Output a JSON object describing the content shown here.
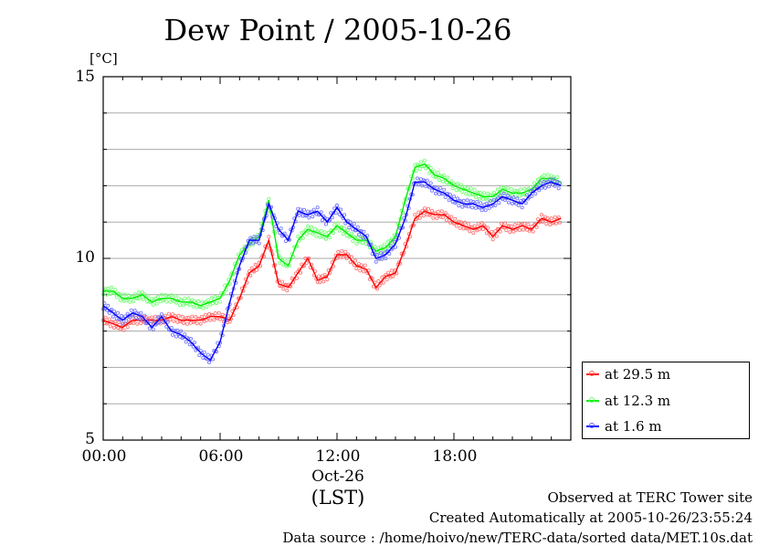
{
  "title": "Dew Point / 2005-10-26",
  "unit": "[°C]",
  "x_date_label": "Oct-26",
  "x_timezone_label": "(LST)",
  "footer": {
    "line1": "Observed at TERC Tower site",
    "line2": "Created Automatically at 2005-10-26/23:55:24",
    "line3": "Data source : /home/hoivo/new/TERC-data/sorted  data/MET.10s.dat"
  },
  "colors": {
    "red": "#ff0000",
    "green": "#00ee00",
    "blue": "#0000ff",
    "grid": "#aaaaaa"
  },
  "chart_data": {
    "type": "line",
    "title": "Dew Point / 2005-10-26",
    "ylabel": "[°C]",
    "xlabel": "(LST)",
    "xlim": [
      0,
      24
    ],
    "ylim": [
      5,
      15
    ],
    "yticks": [
      5,
      10,
      15
    ],
    "xticks": [
      0,
      6,
      12,
      18
    ],
    "xtick_labels": [
      "00:00",
      "06:00",
      "12:00",
      "18:00"
    ],
    "ygrid": [
      6,
      7,
      8,
      9,
      10,
      11,
      12,
      13,
      14
    ],
    "legend_position": "bottom-right, outside plot",
    "series": [
      {
        "name": "at 29.5 m",
        "color": "#ff0000",
        "x": [
          0,
          0.5,
          1,
          1.5,
          2,
          2.5,
          3,
          3.5,
          4,
          4.5,
          5,
          5.5,
          6,
          6.5,
          7,
          7.5,
          8,
          8.5,
          9,
          9.5,
          10,
          10.5,
          11,
          11.5,
          12,
          12.5,
          13,
          13.5,
          14,
          14.5,
          15,
          15.5,
          16,
          16.5,
          17,
          17.5,
          18,
          18.5,
          19,
          19.5,
          20,
          20.5,
          21,
          21.5,
          22,
          22.5,
          23,
          23.5
        ],
        "y": [
          8.3,
          8.2,
          8.1,
          8.3,
          8.3,
          8.3,
          8.3,
          8.4,
          8.3,
          8.3,
          8.3,
          8.4,
          8.4,
          8.3,
          8.9,
          9.6,
          9.8,
          10.5,
          9.3,
          9.2,
          9.6,
          10.0,
          9.4,
          9.5,
          10.1,
          10.1,
          9.8,
          9.7,
          9.2,
          9.5,
          9.6,
          10.3,
          11.1,
          11.3,
          11.2,
          11.2,
          11.0,
          10.9,
          10.8,
          10.9,
          10.6,
          10.9,
          10.8,
          10.9,
          10.8,
          11.1,
          11.0,
          11.1
        ]
      },
      {
        "name": "at 12.3 m",
        "color": "#00ee00",
        "x": [
          0,
          0.5,
          1,
          1.5,
          2,
          2.5,
          3,
          3.5,
          4,
          4.5,
          5,
          5.5,
          6,
          6.5,
          7,
          7.5,
          8,
          8.5,
          9,
          9.5,
          10,
          10.5,
          11,
          11.5,
          12,
          12.5,
          13,
          13.5,
          14,
          14.5,
          15,
          15.5,
          16,
          16.5,
          17,
          17.5,
          18,
          18.5,
          19,
          19.5,
          20,
          20.5,
          21,
          21.5,
          22,
          22.5,
          23,
          23.5
        ],
        "y": [
          9.1,
          9.1,
          8.9,
          8.9,
          9.0,
          8.8,
          8.9,
          8.9,
          8.8,
          8.8,
          8.7,
          8.8,
          8.9,
          9.4,
          10.1,
          10.4,
          10.6,
          11.6,
          10.0,
          9.8,
          10.5,
          10.8,
          10.7,
          10.6,
          10.9,
          10.7,
          10.5,
          10.5,
          10.2,
          10.3,
          10.6,
          11.6,
          12.5,
          12.6,
          12.3,
          12.2,
          12.0,
          11.9,
          11.8,
          11.7,
          11.7,
          11.9,
          11.8,
          11.8,
          11.9,
          12.2,
          12.2,
          12.1
        ]
      },
      {
        "name": "at 1.6 m",
        "color": "#0000ff",
        "x": [
          0,
          0.5,
          1,
          1.5,
          2,
          2.5,
          3,
          3.5,
          4,
          4.5,
          5,
          5.5,
          6,
          6.5,
          7,
          7.5,
          8,
          8.5,
          9,
          9.5,
          10,
          10.5,
          11,
          11.5,
          12,
          12.5,
          13,
          13.5,
          14,
          14.5,
          15,
          15.5,
          16,
          16.5,
          17,
          17.5,
          18,
          18.5,
          19,
          19.5,
          20,
          20.5,
          21,
          21.5,
          22,
          22.5,
          23,
          23.5
        ],
        "y": [
          8.7,
          8.5,
          8.3,
          8.5,
          8.4,
          8.1,
          8.4,
          8.0,
          7.9,
          7.7,
          7.4,
          7.2,
          7.7,
          8.8,
          9.8,
          10.5,
          10.5,
          11.5,
          10.8,
          10.5,
          11.3,
          11.2,
          11.3,
          11.0,
          11.4,
          11.0,
          10.8,
          10.6,
          10.0,
          10.1,
          10.4,
          11.1,
          12.1,
          12.1,
          11.9,
          11.8,
          11.6,
          11.5,
          11.5,
          11.4,
          11.5,
          11.7,
          11.6,
          11.5,
          11.8,
          12.0,
          12.1,
          12.0
        ]
      }
    ]
  }
}
